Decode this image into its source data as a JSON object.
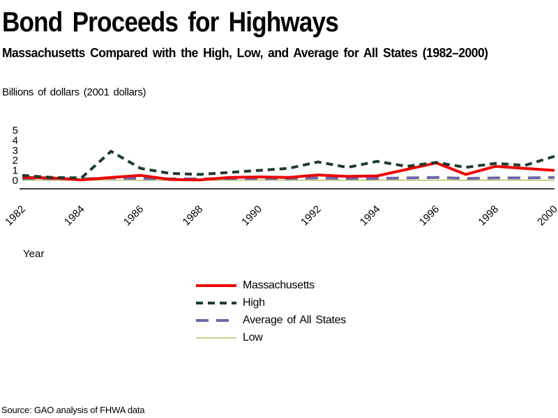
{
  "header": {
    "title": "Bond Proceeds for Highways",
    "subtitle": "Massachusetts Compared with the High, Low, and Average for All States (1982–2000)"
  },
  "axis": {
    "y_title": "Billions of dollars (2001 dollars)",
    "x_title": "Year"
  },
  "source": "Source: GAO analysis of FHWA data",
  "chart_data": {
    "type": "line",
    "title": "Bond Proceeds for Highways",
    "subtitle": "Massachusetts Compared with the High, Low, and Average for All States (1982–2000)",
    "ylabel": "Billions of dollars (2001 dollars)",
    "xlabel": "Year",
    "ylim": [
      0,
      5
    ],
    "yticks": [
      0,
      1,
      2,
      3,
      4,
      5
    ],
    "x": [
      1982,
      1983,
      1984,
      1985,
      1986,
      1987,
      1988,
      1989,
      1990,
      1991,
      1992,
      1993,
      1994,
      1995,
      1996,
      1997,
      1998,
      1999,
      2000
    ],
    "xticks": [
      1982,
      1984,
      1986,
      1988,
      1990,
      1992,
      1994,
      1996,
      1998,
      2000
    ],
    "grid": false,
    "legend_position": "bottom-center",
    "axis_color": "#000000",
    "series": [
      {
        "name": "Low",
        "color": "#b4bd68",
        "style": "solid",
        "dash": null,
        "width": 1.5,
        "values": [
          0.03,
          0.03,
          0.03,
          0.03,
          0.03,
          0.03,
          0.03,
          0.03,
          0.03,
          0.03,
          0.03,
          0.03,
          0.03,
          0.03,
          0.03,
          0.03,
          0.03,
          0.03,
          0.03
        ]
      },
      {
        "name": "Average of All States",
        "color": "#6868aa",
        "style": "dashed",
        "dash": [
          18,
          11
        ],
        "width": 4,
        "values": [
          0.2,
          0.2,
          0.15,
          0.25,
          0.2,
          0.15,
          0.15,
          0.2,
          0.2,
          0.2,
          0.25,
          0.2,
          0.2,
          0.25,
          0.3,
          0.2,
          0.25,
          0.25,
          0.3
        ]
      },
      {
        "name": "Massachusetts",
        "color": "#ee0000",
        "style": "solid",
        "dash": null,
        "width": 4,
        "values": [
          0.3,
          0.25,
          0.05,
          0.3,
          0.5,
          0.1,
          0.05,
          0.3,
          0.35,
          0.3,
          0.55,
          0.4,
          0.45,
          1.1,
          1.75,
          0.6,
          1.4,
          1.2,
          1.0
        ]
      },
      {
        "name": "High",
        "color": "#1e3d2c",
        "style": "dashed",
        "dash": [
          10,
          7
        ],
        "width": 4,
        "values": [
          0.5,
          0.3,
          0.25,
          2.9,
          1.2,
          0.7,
          0.6,
          0.8,
          1.0,
          1.2,
          1.85,
          1.3,
          1.9,
          1.4,
          1.8,
          1.3,
          1.7,
          1.5,
          2.4
        ]
      }
    ],
    "legend_order": [
      "Massachusetts",
      "High",
      "Average of All States",
      "Low"
    ]
  }
}
